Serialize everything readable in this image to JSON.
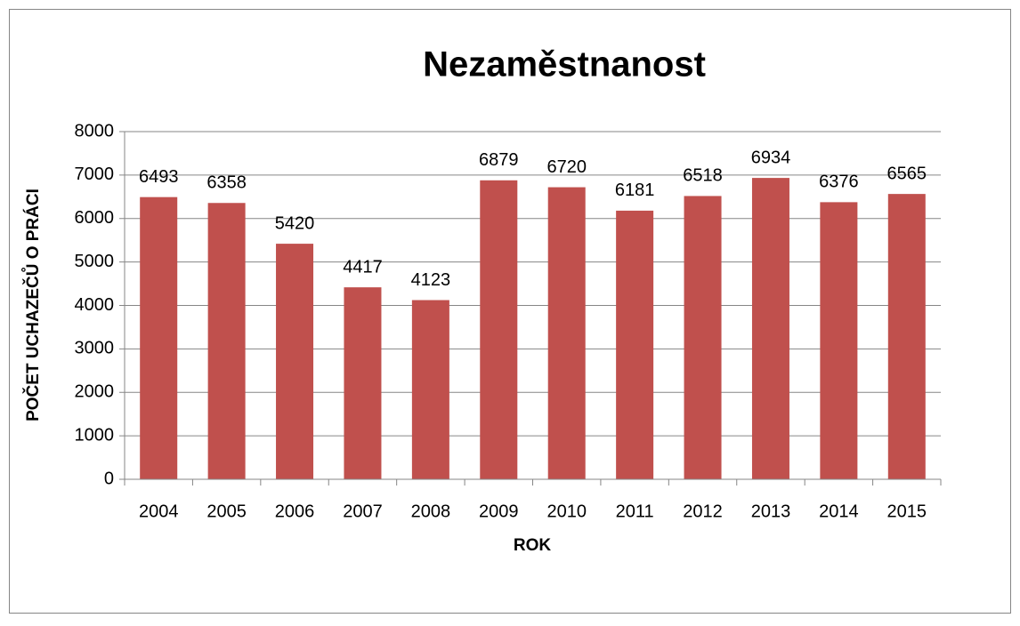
{
  "chart_data": {
    "type": "bar",
    "title": "Nezaměstnanost",
    "x_label": "ROK",
    "y_label": "POČET UCHAZEČŮ O PRÁCI",
    "categories": [
      "2004",
      "2005",
      "2006",
      "2007",
      "2008",
      "2009",
      "2010",
      "2011",
      "2012",
      "2013",
      "2014",
      "2015"
    ],
    "values": [
      6493,
      6358,
      5420,
      4417,
      4123,
      6879,
      6720,
      6181,
      6518,
      6934,
      6376,
      6565
    ],
    "color": "#c0504d",
    "ylim": [
      0,
      8000
    ],
    "yticks": [
      0,
      1000,
      2000,
      3000,
      4000,
      5000,
      6000,
      7000,
      8000
    ],
    "grid": true
  }
}
